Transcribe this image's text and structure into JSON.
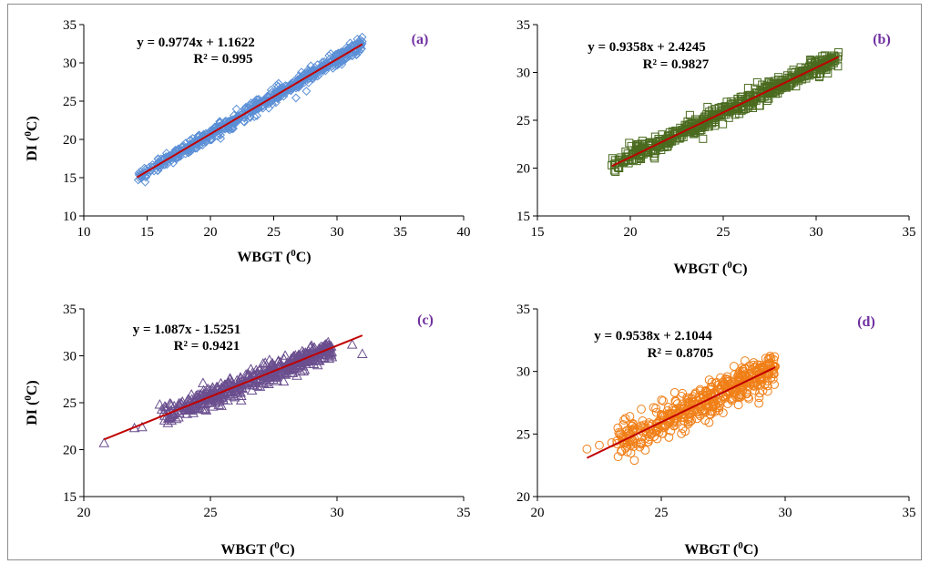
{
  "chart_data": [
    {
      "type": "scatter",
      "panel_label": "(a)",
      "xlabel": "WBGT (",
      "ylabel": "DI (",
      "unit_sup": "0",
      "unit_tail": "C)",
      "xlim": [
        10,
        40
      ],
      "ylim": [
        10,
        35
      ],
      "xticks": [
        "10",
        "15",
        "20",
        "25",
        "30",
        "35",
        "40"
      ],
      "yticks": [
        "10",
        "15",
        "20",
        "25",
        "30",
        "35"
      ],
      "equation": "y = 0.9774x + 1.1622",
      "r2": "R² = 0.995",
      "trendline": {
        "slope": 0.9774,
        "intercept": 1.1622,
        "x_range": [
          14.2,
          32.0
        ]
      },
      "marker": "diamond",
      "marker_color": "#5b8fd6",
      "fill_color": "#4a7cc4",
      "point_count": 650,
      "x_range": [
        14.2,
        32.0
      ],
      "residual_spread": 0.45,
      "outliers": [
        [
          14.3,
          14.7
        ],
        [
          14.5,
          15.2
        ],
        [
          32.0,
          32.8
        ],
        [
          29.5,
          31.2
        ]
      ]
    },
    {
      "type": "scatter",
      "panel_label": "(b)",
      "xlabel": "WBGT (",
      "ylabel": "",
      "unit_sup": "0",
      "unit_tail": "C)",
      "xlim": [
        15,
        35
      ],
      "ylim": [
        15,
        35
      ],
      "xticks": [
        "15",
        "20",
        "25",
        "30",
        "35"
      ],
      "yticks": [
        "15",
        "20",
        "25",
        "30",
        "35"
      ],
      "equation": "y = 0.9358x + 2.4245",
      "r2": "R² = 0.9827",
      "trendline": {
        "slope": 0.9358,
        "intercept": 2.4245,
        "x_range": [
          19.0,
          31.2
        ]
      },
      "marker": "square",
      "marker_color": "#4a6b1f",
      "fill_color": "#4f6d24",
      "point_count": 550,
      "x_range": [
        19.0,
        31.2
      ],
      "residual_spread": 0.45,
      "outliers": [
        [
          19.0,
          20.3
        ],
        [
          19.4,
          20.0
        ],
        [
          31.2,
          32.1
        ],
        [
          19.8,
          21.2
        ]
      ]
    },
    {
      "type": "scatter",
      "panel_label": "(c)",
      "xlabel": "WBGT (",
      "ylabel": "DI (",
      "unit_sup": "0",
      "unit_tail": "C)",
      "xlim": [
        20,
        35
      ],
      "ylim": [
        15,
        35
      ],
      "xticks": [
        "20",
        "25",
        "30",
        "35"
      ],
      "yticks": [
        "15",
        "20",
        "25",
        "30",
        "35"
      ],
      "equation": "y = 1.087x - 1.5251",
      "r2": "R² = 0.9421",
      "trendline": {
        "slope": 1.087,
        "intercept": -1.5251,
        "x_range": [
          20.8,
          31.0
        ]
      },
      "marker": "triangle",
      "marker_color": "#6a4e8e",
      "fill_color": "#6c5190",
      "point_count": 480,
      "x_range": [
        23.0,
        29.8
      ],
      "residual_spread": 0.55,
      "outliers": [
        [
          20.8,
          20.7
        ],
        [
          22.0,
          22.3
        ],
        [
          22.3,
          22.4
        ],
        [
          23.0,
          24.8
        ],
        [
          23.2,
          24.6
        ],
        [
          23.4,
          24.9
        ],
        [
          30.6,
          31.2
        ],
        [
          31.0,
          30.2
        ],
        [
          29.5,
          30.7
        ]
      ]
    },
    {
      "type": "scatter",
      "panel_label": "(d)",
      "xlabel": "WBGT (",
      "ylabel": "",
      "unit_sup": "0",
      "unit_tail": "C)",
      "xlim": [
        20,
        35
      ],
      "ylim": [
        20,
        35
      ],
      "xticks": [
        "20",
        "25",
        "30",
        "35"
      ],
      "yticks": [
        "20",
        "25",
        "30",
        "35"
      ],
      "equation": "y = 0.9538x + 2.1044",
      "r2": "R² = 0.8705",
      "trendline": {
        "slope": 0.9538,
        "intercept": 2.1044,
        "x_range": [
          22.0,
          29.6
        ]
      },
      "marker": "circle",
      "marker_color": "#f07f17",
      "fill_color": "#f07f17",
      "point_count": 480,
      "x_range": [
        23.2,
        29.6
      ],
      "residual_spread": 0.7,
      "outliers": [
        [
          22.0,
          23.8
        ],
        [
          22.5,
          24.1
        ],
        [
          23.0,
          24.3
        ],
        [
          23.4,
          23.6
        ],
        [
          29.6,
          30.4
        ],
        [
          29.0,
          30.5
        ]
      ]
    }
  ],
  "colors": {
    "trendline": "#c00000",
    "panel_label": "#7030a0",
    "axis": "#000000",
    "frame": "#8c8c8c"
  }
}
